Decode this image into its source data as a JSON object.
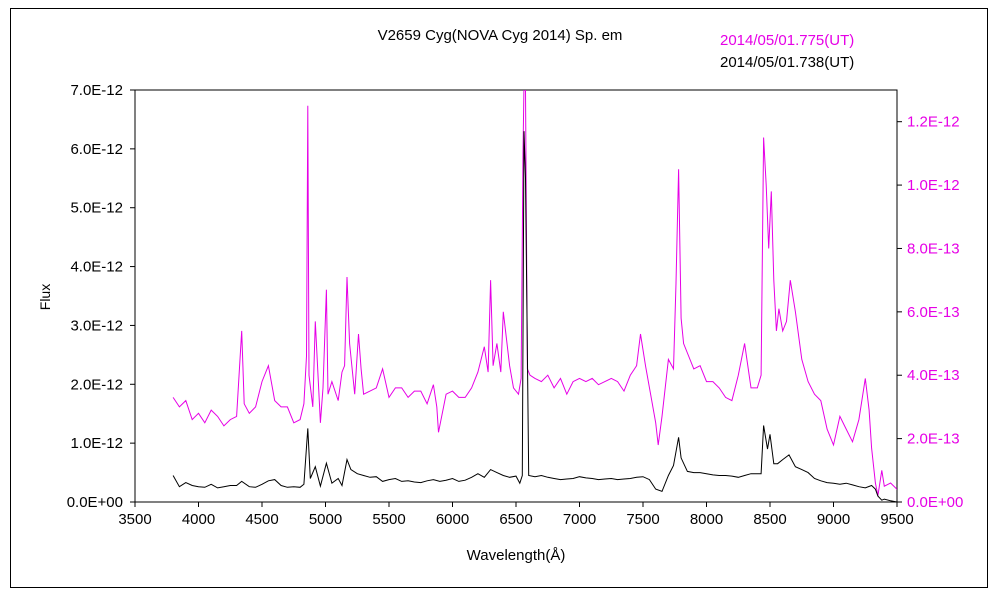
{
  "chart_data": {
    "type": "line",
    "title": "V2659 Cyg(NOVA Cyg 2014)    Sp. em",
    "xlabel": "Wavelength(Å)",
    "ylabel": "Flux",
    "xlim": [
      3500,
      9500
    ],
    "ylim_left": [
      0,
      7e-12
    ],
    "ylim_right": [
      0,
      1.3e-12
    ],
    "x_ticks": [
      "3500",
      "4000",
      "4500",
      "5000",
      "5500",
      "6000",
      "6500",
      "7000",
      "7500",
      "8000",
      "8500",
      "9000",
      "9500"
    ],
    "y_ticks_left": [
      "0.0E+00",
      "1.0E-12",
      "2.0E-12",
      "3.0E-12",
      "4.0E-12",
      "5.0E-12",
      "6.0E-12",
      "7.0E-12"
    ],
    "y_ticks_right": [
      "0.0E+00",
      "2.0E-13",
      "4.0E-13",
      "6.0E-13",
      "8.0E-13",
      "1.0E-12",
      "1.2E-12"
    ],
    "grid": false,
    "legend_position": "top-right",
    "series": [
      {
        "name": "2014/05/01.775(UT)",
        "axis": "right",
        "color": "#e600e6",
        "x": [
          3800,
          3850,
          3900,
          3950,
          4000,
          4050,
          4100,
          4150,
          4200,
          4250,
          4300,
          4340,
          4360,
          4400,
          4450,
          4500,
          4550,
          4600,
          4650,
          4700,
          4750,
          4800,
          4830,
          4850,
          4861,
          4870,
          4900,
          4920,
          4960,
          4980,
          5007,
          5020,
          5050,
          5100,
          5130,
          5150,
          5169,
          5190,
          5230,
          5260,
          5280,
          5300,
          5350,
          5400,
          5450,
          5500,
          5550,
          5600,
          5650,
          5700,
          5750,
          5800,
          5850,
          5876,
          5890,
          5950,
          6000,
          6050,
          6100,
          6150,
          6200,
          6250,
          6280,
          6300,
          6320,
          6350,
          6380,
          6400,
          6450,
          6480,
          6520,
          6540,
          6555,
          6563,
          6575,
          6590,
          6610,
          6650,
          6700,
          6750,
          6800,
          6850,
          6900,
          6950,
          7000,
          7050,
          7100,
          7150,
          7200,
          7250,
          7300,
          7350,
          7400,
          7450,
          7480,
          7520,
          7560,
          7600,
          7620,
          7650,
          7700,
          7740,
          7760,
          7780,
          7800,
          7820,
          7850,
          7900,
          7950,
          8000,
          8050,
          8100,
          8150,
          8200,
          8250,
          8300,
          8350,
          8400,
          8430,
          8450,
          8470,
          8490,
          8510,
          8530,
          8550,
          8570,
          8600,
          8630,
          8660,
          8700,
          8750,
          8800,
          8850,
          8900,
          8950,
          9000,
          9050,
          9100,
          9150,
          9200,
          9250,
          9280,
          9300,
          9330,
          9350,
          9380,
          9400,
          9450,
          9500
        ],
        "y": [
          3.3e-13,
          3e-13,
          3.2e-13,
          2.6e-13,
          2.8e-13,
          2.5e-13,
          2.9e-13,
          2.7e-13,
          2.4e-13,
          2.6e-13,
          2.7e-13,
          5.4e-13,
          3.1e-13,
          2.8e-13,
          3e-13,
          3.8e-13,
          4.3e-13,
          3.2e-13,
          3e-13,
          3e-13,
          2.5e-13,
          2.6e-13,
          3.1e-13,
          4.6e-13,
          1.25e-12,
          4e-13,
          3e-13,
          5.7e-13,
          2.5e-13,
          3.6e-13,
          6.7e-13,
          3.4e-13,
          3.8e-13,
          3.2e-13,
          4.1e-13,
          4.3e-13,
          7.1e-13,
          5e-13,
          3.4e-13,
          5.3e-13,
          4.2e-13,
          3.4e-13,
          3.5e-13,
          3.6e-13,
          4.2e-13,
          3.3e-13,
          3.6e-13,
          3.6e-13,
          3.3e-13,
          3.5e-13,
          3.5e-13,
          3.1e-13,
          3.7e-13,
          3e-13,
          2.2e-13,
          3.4e-13,
          3.5e-13,
          3.3e-13,
          3.3e-13,
          3.6e-13,
          4.1e-13,
          4.9e-13,
          4.1e-13,
          7e-13,
          4.3e-13,
          5e-13,
          4.1e-13,
          6e-13,
          4.3e-13,
          3.6e-13,
          3.4e-13,
          3.9e-13,
          1.1e-12,
          1.32e-12,
          1.3e-12,
          4.2e-13,
          4e-13,
          3.9e-13,
          3.8e-13,
          4e-13,
          3.6e-13,
          3.9e-13,
          3.4e-13,
          3.8e-13,
          3.9e-13,
          3.8e-13,
          3.9e-13,
          3.7e-13,
          3.8e-13,
          3.9e-13,
          3.8e-13,
          3.5e-13,
          4e-13,
          4.3e-13,
          5.3e-13,
          4.3e-13,
          3.4e-13,
          2.5e-13,
          1.8e-13,
          2.7e-13,
          4.5e-13,
          4.2e-13,
          6.9e-13,
          1.05e-12,
          5.8e-13,
          5e-13,
          4.7e-13,
          4.2e-13,
          4.3e-13,
          3.8e-13,
          3.8e-13,
          3.6e-13,
          3.3e-13,
          3.2e-13,
          4e-13,
          5e-13,
          3.6e-13,
          3.6e-13,
          4e-13,
          1.15e-12,
          1e-12,
          8e-13,
          9.8e-13,
          7e-13,
          5.4e-13,
          6.1e-13,
          5.4e-13,
          5.7e-13,
          7e-13,
          6e-13,
          4.5e-13,
          3.8e-13,
          3.4e-13,
          3.2e-13,
          2.3e-13,
          1.8e-13,
          2.7e-13,
          2.3e-13,
          1.9e-13,
          2.6e-13,
          3.9e-13,
          2.9e-13,
          1.7e-13,
          6e-14,
          2e-14,
          1e-13,
          5e-14,
          6e-14,
          4e-14
        ]
      },
      {
        "name": "2014/05/01.738(UT)",
        "axis": "left",
        "color": "#000000",
        "x": [
          3800,
          3850,
          3900,
          3950,
          4000,
          4050,
          4100,
          4150,
          4200,
          4250,
          4300,
          4340,
          4400,
          4450,
          4500,
          4550,
          4600,
          4650,
          4700,
          4750,
          4800,
          4830,
          4861,
          4880,
          4920,
          4960,
          5007,
          5050,
          5100,
          5130,
          5169,
          5200,
          5250,
          5300,
          5350,
          5400,
          5450,
          5500,
          5550,
          5600,
          5650,
          5700,
          5750,
          5800,
          5850,
          5900,
          5950,
          6000,
          6050,
          6100,
          6150,
          6200,
          6250,
          6300,
          6350,
          6400,
          6450,
          6500,
          6530,
          6550,
          6563,
          6575,
          6600,
          6650,
          6700,
          6750,
          6800,
          6850,
          6900,
          6950,
          7000,
          7050,
          7100,
          7150,
          7200,
          7250,
          7300,
          7350,
          7400,
          7450,
          7500,
          7550,
          7600,
          7650,
          7700,
          7740,
          7780,
          7800,
          7850,
          7900,
          7950,
          8000,
          8050,
          8100,
          8150,
          8200,
          8250,
          8300,
          8350,
          8400,
          8430,
          8450,
          8480,
          8500,
          8530,
          8560,
          8600,
          8650,
          8700,
          8750,
          8800,
          8850,
          8900,
          8950,
          9000,
          9050,
          9100,
          9150,
          9200,
          9250,
          9300,
          9330,
          9350,
          9380,
          9400,
          9450,
          9500
        ],
        "y": [
          4.5e-13,
          2.6e-13,
          3.3e-13,
          2.8e-13,
          2.6e-13,
          2.5e-13,
          3e-13,
          2.4e-13,
          2.6e-13,
          2.8e-13,
          2.8e-13,
          3.5e-13,
          2.6e-13,
          2.5e-13,
          3e-13,
          3.6e-13,
          3.8e-13,
          2.8e-13,
          2.5e-13,
          2.6e-13,
          2.5e-13,
          3e-13,
          1.25e-12,
          4e-13,
          6e-13,
          2.7e-13,
          6.6e-13,
          3.2e-13,
          4e-13,
          2.8e-13,
          7.2e-13,
          5.5e-13,
          4.8e-13,
          4.5e-13,
          4.2e-13,
          4.3e-13,
          3.5e-13,
          3.8e-13,
          4e-13,
          3.5e-13,
          3.6e-13,
          3.4e-13,
          3.3e-13,
          3.6e-13,
          3.8e-13,
          3.5e-13,
          3.7e-13,
          4e-13,
          3.5e-13,
          3.7e-13,
          4.2e-13,
          4.8e-13,
          4.2e-13,
          5.5e-13,
          5e-13,
          4.5e-13,
          4.2e-13,
          4.4e-13,
          3.2e-13,
          4.5e-13,
          6.3e-12,
          5.5e-12,
          4.5e-13,
          4.3e-13,
          4.5e-13,
          4.2e-13,
          4e-13,
          3.8e-13,
          3.9e-13,
          4e-13,
          4.3e-13,
          4.1e-13,
          4e-13,
          3.8e-13,
          3.9e-13,
          4e-13,
          3.8e-13,
          3.9e-13,
          4e-13,
          4.2e-13,
          4.3e-13,
          3.8e-13,
          2.2e-13,
          1.8e-13,
          4.5e-13,
          6.2e-13,
          1.1e-12,
          7.5e-13,
          5.2e-13,
          5e-13,
          5e-13,
          4.8e-13,
          4.6e-13,
          4.5e-13,
          4.5e-13,
          4.4e-13,
          4.2e-13,
          4.5e-13,
          4.8e-13,
          4.8e-13,
          4.8e-13,
          1.3e-12,
          9e-13,
          1.15e-12,
          6.5e-13,
          6.5e-13,
          7.2e-13,
          8e-13,
          6e-13,
          5.5e-13,
          5e-13,
          4e-13,
          3.6e-13,
          3.3e-13,
          3.2e-13,
          3e-13,
          3.2e-13,
          2.9e-13,
          2.6e-13,
          2.4e-13,
          2.8e-13,
          2.2e-13,
          1e-13,
          3e-14,
          5e-14,
          2e-14,
          0.0
        ]
      }
    ]
  }
}
